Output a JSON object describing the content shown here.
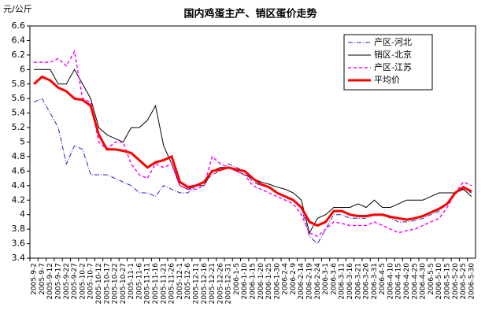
{
  "chart_data": {
    "type": "line",
    "title": "国内鸡蛋主产、销区蛋价走势",
    "y_label": "元/公斤",
    "categories": [
      "2005-9-2",
      "2005-9-7",
      "2005-9-12",
      "2005-9-17",
      "2005-9-22",
      "2005-9-27",
      "2005-10-2",
      "2005-10-7",
      "2005-10-12",
      "2005-10-17",
      "2005-10-22",
      "2005-10-27",
      "2005-11-1",
      "2005-11-6",
      "2005-11-11",
      "2005-11-16",
      "2005-11-21",
      "2005-11-26",
      "2005-12-1",
      "2005-12-6",
      "2005-12-11",
      "2005-12-16",
      "2005-12-21",
      "2005-12-26",
      "2005-12-31",
      "2006-1-5",
      "2006-1-10",
      "2006-1-15",
      "2006-1-20",
      "2006-1-25",
      "2006-1-30",
      "2006-2-4",
      "2006-2-9",
      "2006-2-14",
      "2006-2-19",
      "2006-2-24",
      "2006-3-1",
      "2006-3-6",
      "2006-3-11",
      "2006-3-16",
      "2006-3-21",
      "2006-3-26",
      "2006-3-31",
      "2006-4-5",
      "2006-4-10",
      "2006-4-15",
      "2006-4-20",
      "2006-4-25",
      "2006-4-30",
      "2006-5-5",
      "2006-5-10",
      "2006-5-15",
      "2006-5-20",
      "2006-5-25",
      "2006-5-30"
    ],
    "series": [
      {
        "name": "产区-河北",
        "color": "#1f1fcc",
        "dash": "6 2 1 2",
        "width": 1,
        "values": [
          5.55,
          5.6,
          5.4,
          5.2,
          4.7,
          4.95,
          4.9,
          4.55,
          4.55,
          4.55,
          4.5,
          4.45,
          4.4,
          4.3,
          4.3,
          4.25,
          4.4,
          4.35,
          4.3,
          4.3,
          4.4,
          4.45,
          4.55,
          4.6,
          4.7,
          4.65,
          4.6,
          4.45,
          4.4,
          4.38,
          4.3,
          4.25,
          4.2,
          4.1,
          3.7,
          3.6,
          3.8,
          4.0,
          4.0,
          3.95,
          3.95,
          3.95,
          4.0,
          4.0,
          3.95,
          3.9,
          3.9,
          3.92,
          3.95,
          4.0,
          4.05,
          4.15,
          4.3,
          4.35,
          4.3
        ]
      },
      {
        "name": "销区-北京",
        "color": "#000000",
        "dash": "none",
        "width": 1,
        "values": [
          6.0,
          6.0,
          6.0,
          5.8,
          5.8,
          6.0,
          5.8,
          5.6,
          5.2,
          5.1,
          5.05,
          5.0,
          5.2,
          5.2,
          5.3,
          5.5,
          4.95,
          4.7,
          4.4,
          4.35,
          4.4,
          4.4,
          4.6,
          4.65,
          4.65,
          4.6,
          4.55,
          4.5,
          4.45,
          4.42,
          4.38,
          4.35,
          4.3,
          4.2,
          3.75,
          3.95,
          4.0,
          4.1,
          4.1,
          4.1,
          4.15,
          4.1,
          4.2,
          4.1,
          4.1,
          4.15,
          4.2,
          4.2,
          4.2,
          4.25,
          4.3,
          4.3,
          4.3,
          4.35,
          4.25
        ]
      },
      {
        "name": "产区-江苏",
        "color": "#ff00ff",
        "dash": "4 3",
        "width": 1.5,
        "values": [
          6.1,
          6.1,
          6.1,
          6.15,
          6.05,
          6.25,
          5.6,
          5.55,
          5.0,
          4.9,
          5.0,
          5.0,
          4.7,
          4.55,
          4.5,
          4.7,
          4.65,
          4.7,
          4.4,
          4.35,
          4.35,
          4.4,
          4.8,
          4.7,
          4.65,
          4.6,
          4.55,
          4.4,
          4.35,
          4.3,
          4.25,
          4.2,
          4.15,
          4.0,
          3.75,
          3.7,
          3.8,
          3.9,
          3.88,
          3.85,
          3.85,
          3.85,
          3.9,
          3.85,
          3.8,
          3.75,
          3.78,
          3.8,
          3.85,
          3.9,
          3.95,
          4.1,
          4.3,
          4.45,
          4.4
        ]
      },
      {
        "name": "平均价",
        "color": "#ff0000",
        "dash": "none",
        "width": 3,
        "values": [
          5.8,
          5.9,
          5.85,
          5.75,
          5.7,
          5.6,
          5.58,
          5.5,
          5.1,
          4.9,
          4.9,
          4.88,
          4.85,
          4.75,
          4.65,
          4.72,
          4.75,
          4.8,
          4.45,
          4.38,
          4.4,
          4.45,
          4.6,
          4.62,
          4.65,
          4.62,
          4.6,
          4.5,
          4.42,
          4.38,
          4.3,
          4.25,
          4.2,
          4.1,
          3.9,
          3.85,
          3.9,
          4.05,
          4.05,
          4.0,
          3.98,
          3.98,
          4.0,
          4.0,
          3.97,
          3.95,
          3.93,
          3.95,
          3.98,
          4.03,
          4.08,
          4.15,
          4.3,
          4.38,
          4.32
        ]
      }
    ],
    "ylim": [
      3.4,
      6.6
    ],
    "yticks": [
      3.4,
      3.6,
      3.8,
      4,
      4.2,
      4.4,
      4.6,
      4.8,
      5,
      5.2,
      5.4,
      5.6,
      5.8,
      6,
      6.2,
      6.4,
      6.6
    ]
  }
}
